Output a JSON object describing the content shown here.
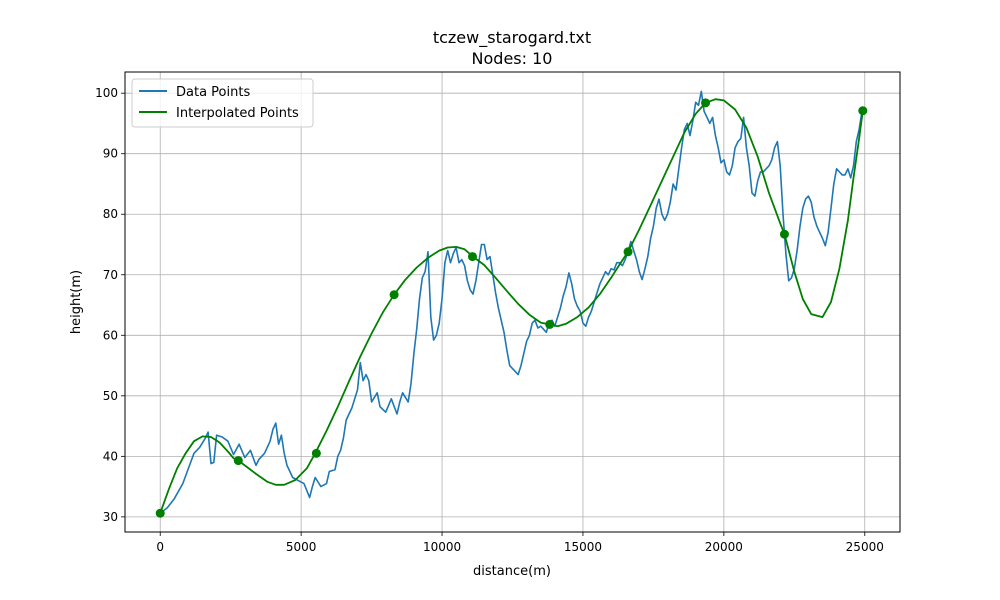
{
  "chart_data": {
    "type": "line",
    "title": "tczew_starogard.txt",
    "subtitle": "Nodes: 10",
    "xlabel": "distance(m)",
    "ylabel": "height(m)",
    "xlim": [
      -1250,
      26250
    ],
    "ylim": [
      27.5,
      103.5
    ],
    "xticks": [
      0,
      5000,
      10000,
      15000,
      20000,
      25000
    ],
    "yticks": [
      30,
      40,
      50,
      60,
      70,
      80,
      90,
      100
    ],
    "grid": true,
    "legend_position": "top-left",
    "series": [
      {
        "name": "Data Points",
        "color": "#1f77b4",
        "points": [
          [
            0,
            30.6
          ],
          [
            250,
            31.5
          ],
          [
            500,
            33
          ],
          [
            800,
            35.5
          ],
          [
            1000,
            38
          ],
          [
            1200,
            40.5
          ],
          [
            1400,
            41.5
          ],
          [
            1600,
            43
          ],
          [
            1700,
            44
          ],
          [
            1800,
            38.8
          ],
          [
            1900,
            39
          ],
          [
            2000,
            43.5
          ],
          [
            2200,
            43.2
          ],
          [
            2400,
            42.5
          ],
          [
            2600,
            40.3
          ],
          [
            2800,
            42
          ],
          [
            3000,
            39.8
          ],
          [
            3200,
            41
          ],
          [
            3400,
            38.5
          ],
          [
            3500,
            39.5
          ],
          [
            3700,
            40.5
          ],
          [
            3900,
            42.5
          ],
          [
            4000,
            44.5
          ],
          [
            4100,
            45.5
          ],
          [
            4200,
            42
          ],
          [
            4300,
            43.5
          ],
          [
            4400,
            40.5
          ],
          [
            4500,
            38.5
          ],
          [
            4700,
            36.5
          ],
          [
            4900,
            36
          ],
          [
            5100,
            35.5
          ],
          [
            5300,
            33.2
          ],
          [
            5400,
            35
          ],
          [
            5500,
            36.5
          ],
          [
            5700,
            35
          ],
          [
            5900,
            35.5
          ],
          [
            6000,
            37.5
          ],
          [
            6200,
            37.8
          ],
          [
            6300,
            40
          ],
          [
            6400,
            41
          ],
          [
            6500,
            43
          ],
          [
            6600,
            46
          ],
          [
            6800,
            48
          ],
          [
            7000,
            51
          ],
          [
            7100,
            55.5
          ],
          [
            7200,
            52.5
          ],
          [
            7300,
            53.5
          ],
          [
            7400,
            52.5
          ],
          [
            7500,
            49
          ],
          [
            7700,
            50.5
          ],
          [
            7800,
            48.2
          ],
          [
            8000,
            47.3
          ],
          [
            8200,
            49.5
          ],
          [
            8400,
            47
          ],
          [
            8500,
            49
          ],
          [
            8600,
            50.5
          ],
          [
            8800,
            49
          ],
          [
            8900,
            52
          ],
          [
            9000,
            57
          ],
          [
            9100,
            61
          ],
          [
            9200,
            66
          ],
          [
            9300,
            69.5
          ],
          [
            9400,
            70.5
          ],
          [
            9500,
            73.8
          ],
          [
            9600,
            63
          ],
          [
            9700,
            59.2
          ],
          [
            9800,
            60
          ],
          [
            9900,
            62
          ],
          [
            10000,
            66
          ],
          [
            10100,
            72
          ],
          [
            10200,
            74
          ],
          [
            10300,
            72
          ],
          [
            10400,
            73.5
          ],
          [
            10500,
            74.5
          ],
          [
            10600,
            72
          ],
          [
            10700,
            72.5
          ],
          [
            10800,
            71.5
          ],
          [
            10900,
            69
          ],
          [
            11000,
            67.5
          ],
          [
            11100,
            66.8
          ],
          [
            11200,
            69
          ],
          [
            11300,
            72
          ],
          [
            11400,
            75
          ],
          [
            11500,
            75
          ],
          [
            11600,
            72.5
          ],
          [
            11700,
            73
          ],
          [
            11800,
            70
          ],
          [
            11900,
            67
          ],
          [
            12000,
            64.5
          ],
          [
            12100,
            62.5
          ],
          [
            12200,
            60.5
          ],
          [
            12300,
            57.5
          ],
          [
            12400,
            55
          ],
          [
            12600,
            54
          ],
          [
            12700,
            53.5
          ],
          [
            12800,
            55
          ],
          [
            12900,
            57
          ],
          [
            13000,
            59
          ],
          [
            13100,
            60
          ],
          [
            13200,
            62
          ],
          [
            13300,
            62.5
          ],
          [
            13400,
            61.2
          ],
          [
            13500,
            61.5
          ],
          [
            13600,
            61
          ],
          [
            13700,
            60.5
          ],
          [
            13800,
            62
          ],
          [
            13900,
            62.5
          ],
          [
            14000,
            61.5
          ],
          [
            14100,
            63
          ],
          [
            14200,
            64.5
          ],
          [
            14300,
            66.5
          ],
          [
            14400,
            68
          ],
          [
            14500,
            70.3
          ],
          [
            14600,
            68.5
          ],
          [
            14700,
            66
          ],
          [
            14800,
            64.8
          ],
          [
            14900,
            64
          ],
          [
            15000,
            62
          ],
          [
            15100,
            61.5
          ],
          [
            15200,
            63
          ],
          [
            15300,
            64
          ],
          [
            15400,
            65.5
          ],
          [
            15500,
            67
          ],
          [
            15600,
            68.5
          ],
          [
            15700,
            69.5
          ],
          [
            15800,
            70.5
          ],
          [
            15900,
            70
          ],
          [
            16000,
            71
          ],
          [
            16100,
            70.8
          ],
          [
            16200,
            72
          ],
          [
            16300,
            72
          ],
          [
            16400,
            71.5
          ],
          [
            16500,
            72.5
          ],
          [
            16600,
            73.8
          ],
          [
            16700,
            75.5
          ],
          [
            16800,
            74
          ],
          [
            16900,
            72.5
          ],
          [
            17000,
            70.5
          ],
          [
            17100,
            69.2
          ],
          [
            17200,
            71
          ],
          [
            17300,
            73
          ],
          [
            17400,
            76
          ],
          [
            17500,
            78
          ],
          [
            17600,
            81
          ],
          [
            17700,
            82.5
          ],
          [
            17800,
            80
          ],
          [
            17900,
            79
          ],
          [
            18000,
            80
          ],
          [
            18100,
            82
          ],
          [
            18200,
            85
          ],
          [
            18300,
            84
          ],
          [
            18400,
            87.5
          ],
          [
            18500,
            91
          ],
          [
            18600,
            94
          ],
          [
            18700,
            95
          ],
          [
            18800,
            93
          ],
          [
            18900,
            95.5
          ],
          [
            19000,
            98.5
          ],
          [
            19100,
            98
          ],
          [
            19200,
            100.3
          ],
          [
            19300,
            97
          ],
          [
            19400,
            96
          ],
          [
            19500,
            95
          ],
          [
            19600,
            96
          ],
          [
            19700,
            93
          ],
          [
            19800,
            91
          ],
          [
            19900,
            88.5
          ],
          [
            20000,
            89
          ],
          [
            20100,
            87
          ],
          [
            20200,
            86.5
          ],
          [
            20300,
            88
          ],
          [
            20400,
            91
          ],
          [
            20500,
            92
          ],
          [
            20600,
            92.5
          ],
          [
            20700,
            96
          ],
          [
            20800,
            91
          ],
          [
            20900,
            88
          ],
          [
            21000,
            83.5
          ],
          [
            21100,
            83
          ],
          [
            21200,
            85.5
          ],
          [
            21300,
            87
          ],
          [
            21400,
            87
          ],
          [
            21500,
            87.5
          ],
          [
            21600,
            88
          ],
          [
            21700,
            89
          ],
          [
            21800,
            91
          ],
          [
            21900,
            92
          ],
          [
            22000,
            88
          ],
          [
            22100,
            80
          ],
          [
            22200,
            73.5
          ],
          [
            22300,
            69
          ],
          [
            22400,
            69.5
          ],
          [
            22500,
            71
          ],
          [
            22600,
            74
          ],
          [
            22700,
            78
          ],
          [
            22800,
            81
          ],
          [
            22900,
            82.5
          ],
          [
            23000,
            83
          ],
          [
            23100,
            82
          ],
          [
            23200,
            79.5
          ],
          [
            23300,
            78
          ],
          [
            23400,
            77
          ],
          [
            23500,
            76
          ],
          [
            23600,
            74.8
          ],
          [
            23700,
            77
          ],
          [
            23800,
            81
          ],
          [
            23900,
            85
          ],
          [
            24000,
            87.5
          ],
          [
            24100,
            87
          ],
          [
            24200,
            86.5
          ],
          [
            24300,
            86.5
          ],
          [
            24400,
            87.5
          ],
          [
            24500,
            86
          ],
          [
            24600,
            88
          ],
          [
            24700,
            92
          ],
          [
            24800,
            94
          ],
          [
            24900,
            97
          ]
        ]
      },
      {
        "name": "Interpolated Points",
        "color": "#008000",
        "points": [
          [
            0,
            30.6
          ],
          [
            300,
            34.5
          ],
          [
            600,
            38
          ],
          [
            900,
            40.5
          ],
          [
            1200,
            42.5
          ],
          [
            1500,
            43.3
          ],
          [
            1800,
            43.2
          ],
          [
            2100,
            42.3
          ],
          [
            2400,
            40.8
          ],
          [
            2600,
            39.7
          ],
          [
            2770,
            39.3
          ],
          [
            3000,
            38.5
          ],
          [
            3400,
            37.1
          ],
          [
            3800,
            35.8
          ],
          [
            4100,
            35.3
          ],
          [
            4400,
            35.3
          ],
          [
            4800,
            36.1
          ],
          [
            5200,
            38
          ],
          [
            5500,
            40.5
          ],
          [
            5900,
            44.2
          ],
          [
            6300,
            48.2
          ],
          [
            6700,
            52.4
          ],
          [
            7100,
            56.5
          ],
          [
            7500,
            60.3
          ],
          [
            7900,
            63.8
          ],
          [
            8300,
            66.7
          ],
          [
            8700,
            69.2
          ],
          [
            9100,
            71.2
          ],
          [
            9500,
            72.8
          ],
          [
            9900,
            74
          ],
          [
            10200,
            74.5
          ],
          [
            10500,
            74.6
          ],
          [
            10800,
            74.2
          ],
          [
            11100,
            73
          ],
          [
            11500,
            71.6
          ],
          [
            11900,
            69.5
          ],
          [
            12300,
            67.3
          ],
          [
            12700,
            65.2
          ],
          [
            13100,
            63.4
          ],
          [
            13500,
            62.1
          ],
          [
            13800,
            61.8
          ],
          [
            14100,
            61.5
          ],
          [
            14400,
            61.9
          ],
          [
            14800,
            63
          ],
          [
            15200,
            64.6
          ],
          [
            15600,
            66.8
          ],
          [
            16000,
            69.5
          ],
          [
            16300,
            71.7
          ],
          [
            16600,
            73.8
          ],
          [
            17000,
            77.5
          ],
          [
            17400,
            81.5
          ],
          [
            17800,
            85.5
          ],
          [
            18200,
            89.5
          ],
          [
            18600,
            93.5
          ],
          [
            19000,
            96.6
          ],
          [
            19350,
            98.4
          ],
          [
            19700,
            99
          ],
          [
            20000,
            98.8
          ],
          [
            20400,
            97.3
          ],
          [
            20800,
            94.3
          ],
          [
            21200,
            89.5
          ],
          [
            21600,
            83.5
          ],
          [
            22000,
            78.5
          ],
          [
            22150,
            76.7
          ],
          [
            22500,
            70.5
          ],
          [
            22800,
            66
          ],
          [
            23100,
            63.5
          ],
          [
            23500,
            63
          ],
          [
            23800,
            65.5
          ],
          [
            24100,
            71
          ],
          [
            24400,
            79
          ],
          [
            24600,
            86
          ],
          [
            24800,
            92.5
          ],
          [
            24930,
            97.1
          ]
        ]
      }
    ],
    "nodes": {
      "color": "#008000",
      "points": [
        [
          0,
          30.6
        ],
        [
          2770,
          39.3
        ],
        [
          5540,
          40.5
        ],
        [
          8300,
          66.7
        ],
        [
          11080,
          73
        ],
        [
          13820,
          61.8
        ],
        [
          16600,
          73.8
        ],
        [
          19350,
          98.4
        ],
        [
          22150,
          76.7
        ],
        [
          24930,
          97.1
        ]
      ]
    }
  }
}
